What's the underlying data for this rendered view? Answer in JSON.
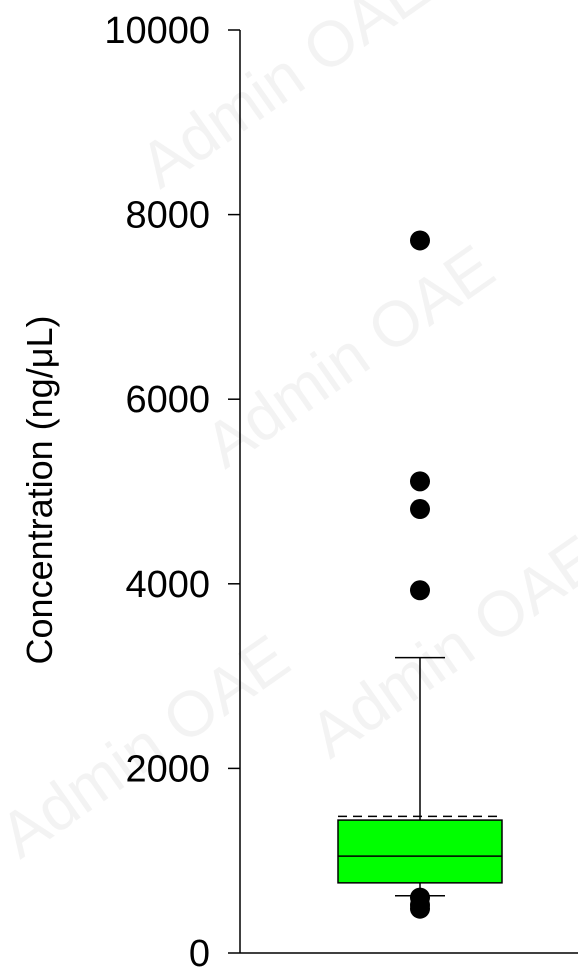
{
  "chart_data": {
    "type": "box",
    "ylabel": "Concentration (ng/μL)",
    "ylim": [
      0,
      10000
    ],
    "yticks": [
      0,
      2000,
      4000,
      6000,
      8000,
      10000
    ],
    "ytick_labels": [
      "0",
      "2000",
      "4000",
      "6000",
      "8000",
      "10000"
    ],
    "box": {
      "q1": 760,
      "median": 1050,
      "q3": 1440,
      "mean": 1480,
      "whisker_low": 620,
      "whisker_high": 3200,
      "outliers": [
        7720,
        5110,
        4810,
        3930,
        600,
        520,
        480
      ],
      "fill_color": "#00ff00"
    },
    "grid": false,
    "legend": "none"
  },
  "watermark": "Admin OAE"
}
